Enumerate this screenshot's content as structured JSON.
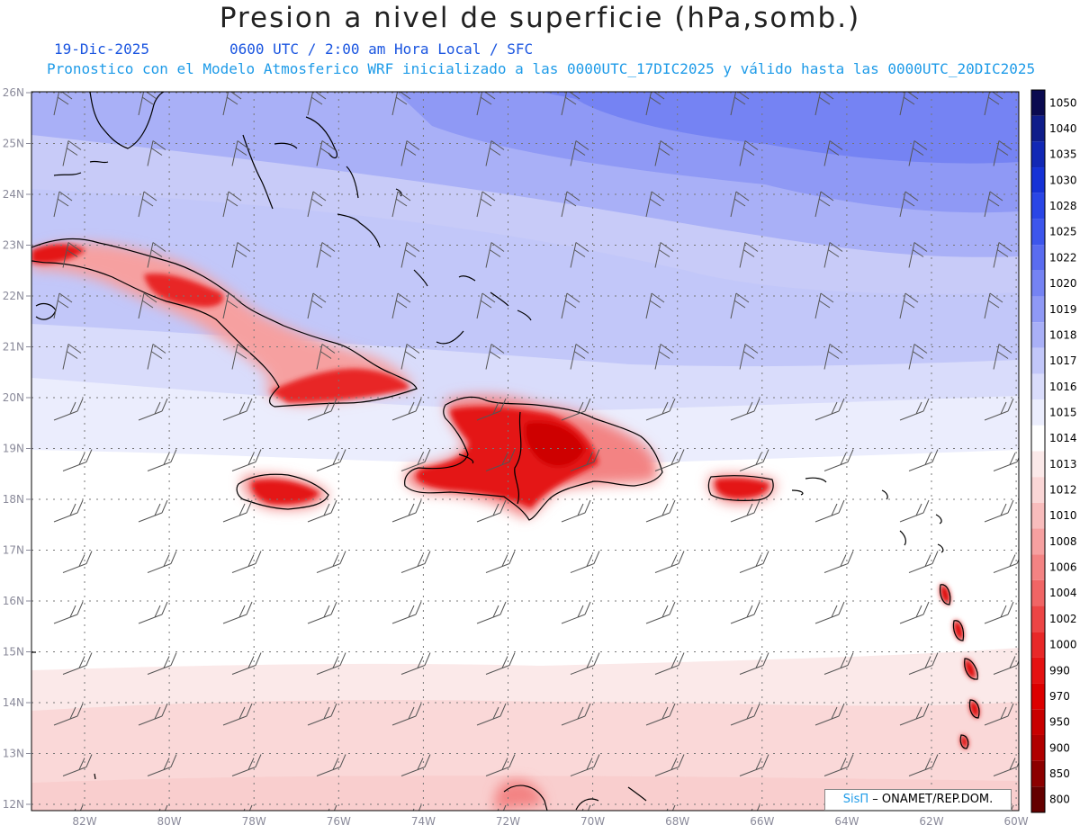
{
  "title": "Presion a nivel de superficie (hPa,somb.)",
  "date": "19-Dic-2025",
  "time_line": "0600 UTC / 2:00 am Hora Local / SFC",
  "subtitle": "Pronostico con el Modelo Atmosferico WRF inicializado a las 0000UTC_17DIC2025 y válido hasta las  0000UTC_20DIC2025",
  "credit": {
    "logo": "SisΠ",
    "text": "– ONAMET/REP.DOM."
  },
  "map": {
    "lon_labels": [
      "82W",
      "80W",
      "78W",
      "76W",
      "74W",
      "72W",
      "70W",
      "68W",
      "66W",
      "64W",
      "62W",
      "60W"
    ],
    "lat_labels": [
      "26N",
      "25N",
      "24N",
      "23N",
      "22N",
      "21N",
      "20N",
      "19N",
      "18N",
      "17N",
      "16N",
      "15N",
      "14N",
      "13N",
      "12N"
    ]
  },
  "colorbar": {
    "levels": [
      {
        "label": "1050",
        "color": "#0a0a50"
      },
      {
        "label": "1040",
        "color": "#0f1d8a"
      },
      {
        "label": "1035",
        "color": "#1228b5"
      },
      {
        "label": "1030",
        "color": "#1632d6"
      },
      {
        "label": "1028",
        "color": "#2a46e6"
      },
      {
        "label": "1025",
        "color": "#3d56ec"
      },
      {
        "label": "1022",
        "color": "#5a6cf0"
      },
      {
        "label": "1020",
        "color": "#7583f3"
      },
      {
        "label": "1019",
        "color": "#8f99f5"
      },
      {
        "label": "1018",
        "color": "#a9b0f7"
      },
      {
        "label": "1017",
        "color": "#c2c7f9"
      },
      {
        "label": "1016",
        "color": "#d9dcfb"
      },
      {
        "label": "1015",
        "color": "#ebedfd"
      },
      {
        "label": "1014",
        "color": "#ffffff"
      },
      {
        "label": "1013",
        "color": "#fbe9e9"
      },
      {
        "label": "1012",
        "color": "#fad6d6"
      },
      {
        "label": "1010",
        "color": "#f8bcbc"
      },
      {
        "label": "1008",
        "color": "#f6a0a0"
      },
      {
        "label": "1006",
        "color": "#f38383"
      },
      {
        "label": "1004",
        "color": "#f06565"
      },
      {
        "label": "1002",
        "color": "#ec4545"
      },
      {
        "label": "1000",
        "color": "#e82828"
      },
      {
        "label": "990",
        "color": "#e41212"
      },
      {
        "label": "970",
        "color": "#dc0000"
      },
      {
        "label": "950",
        "color": "#c80000"
      },
      {
        "label": "900",
        "color": "#b00000"
      },
      {
        "label": "850",
        "color": "#8c0000"
      },
      {
        "label": "800",
        "color": "#640000"
      }
    ]
  }
}
